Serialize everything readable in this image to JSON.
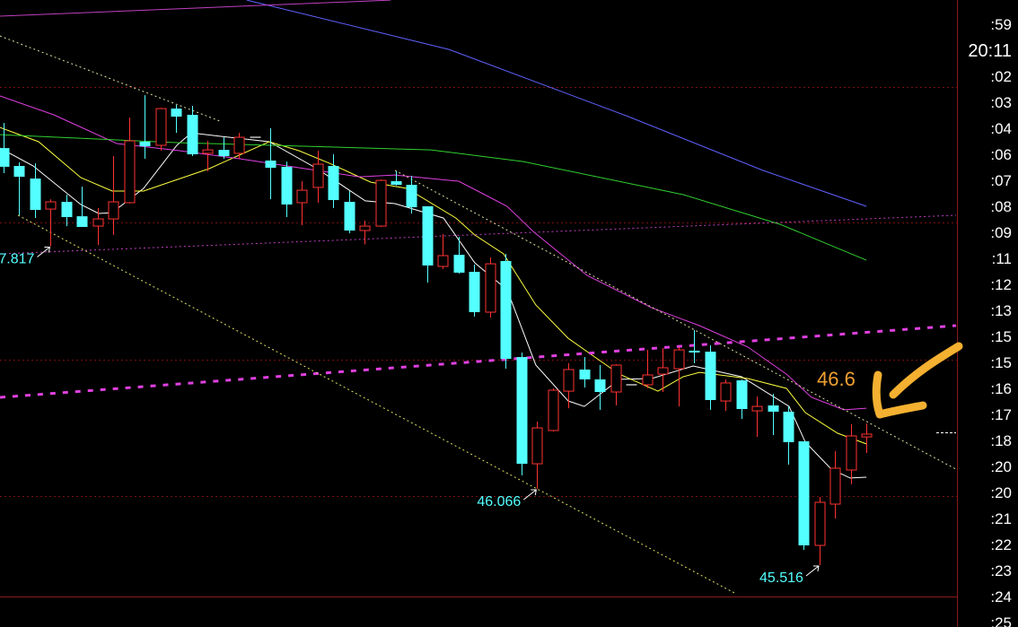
{
  "chart_data": {
    "type": "candlestick",
    "colors": {
      "up": "#ff3232",
      "down": "#54ffff",
      "flat": "#c0c0c0",
      "background": "#000000",
      "axis": "#8b1a1a",
      "grid": "#7a1010"
    },
    "y_axis_labels": [
      ":59",
      "20:11",
      ":02",
      ":03",
      ":04",
      ":06",
      ":07",
      ":08",
      ":09",
      ":11",
      ":12",
      ":13",
      ":15",
      ":15",
      ":16",
      ":17",
      ":18",
      ":20",
      ":20",
      ":21",
      ":22",
      ":23",
      ":24",
      ":25"
    ],
    "highlighted_axis_label": "20:11",
    "grid_price_levels": [
      48.965,
      47.988,
      46.998,
      46.014
    ],
    "candles": [
      {
        "o": 48.525,
        "h": 48.707,
        "l": 48.344,
        "c": 48.39
      },
      {
        "o": 48.396,
        "h": 48.422,
        "l": 48.04,
        "c": 48.318
      },
      {
        "o": 48.305,
        "h": 48.415,
        "l": 48.021,
        "c": 48.079
      },
      {
        "o": 48.085,
        "h": 48.156,
        "l": 47.817,
        "c": 48.137
      },
      {
        "o": 48.137,
        "h": 48.189,
        "l": 47.962,
        "c": 48.027
      },
      {
        "o": 48.033,
        "h": 48.247,
        "l": 47.956,
        "c": 47.956
      },
      {
        "o": 47.962,
        "h": 48.092,
        "l": 47.825,
        "c": 48.014
      },
      {
        "o": 48.014,
        "h": 48.467,
        "l": 47.898,
        "c": 48.137
      },
      {
        "o": 48.131,
        "h": 48.745,
        "l": 48.125,
        "c": 48.577
      },
      {
        "o": 48.571,
        "h": 48.907,
        "l": 48.448,
        "c": 48.538
      },
      {
        "o": 48.545,
        "h": 48.815,
        "l": 48.506,
        "c": 48.81
      },
      {
        "o": 48.81,
        "h": 48.836,
        "l": 48.635,
        "c": 48.752
      },
      {
        "o": 48.765,
        "h": 48.83,
        "l": 48.467,
        "c": 48.48
      },
      {
        "o": 48.487,
        "h": 48.577,
        "l": 48.357,
        "c": 48.512
      },
      {
        "o": 48.512,
        "h": 48.603,
        "l": 48.448,
        "c": 48.467
      },
      {
        "o": 48.487,
        "h": 48.635,
        "l": 48.448,
        "c": 48.603
      },
      {
        "o": 48.603,
        "h": 48.603,
        "l": 48.603,
        "c": 48.603
      },
      {
        "o": 48.435,
        "h": 48.668,
        "l": 48.156,
        "c": 48.383
      },
      {
        "o": 48.39,
        "h": 48.428,
        "l": 48.027,
        "c": 48.118
      },
      {
        "o": 48.131,
        "h": 48.286,
        "l": 47.969,
        "c": 48.221
      },
      {
        "o": 48.241,
        "h": 48.506,
        "l": 48.131,
        "c": 48.409
      },
      {
        "o": 48.396,
        "h": 48.48,
        "l": 48.092,
        "c": 48.15
      },
      {
        "o": 48.137,
        "h": 48.215,
        "l": 47.911,
        "c": 47.93
      },
      {
        "o": 47.93,
        "h": 48.001,
        "l": 47.83,
        "c": 47.962
      },
      {
        "o": 47.962,
        "h": 48.299,
        "l": 47.956,
        "c": 48.292
      },
      {
        "o": 48.286,
        "h": 48.357,
        "l": 48.255,
        "c": 48.26
      },
      {
        "o": 48.26,
        "h": 48.325,
        "l": 48.053,
        "c": 48.098
      },
      {
        "o": 48.105,
        "h": 48.105,
        "l": 47.555,
        "c": 47.678
      },
      {
        "o": 47.671,
        "h": 47.904,
        "l": 47.652,
        "c": 47.749
      },
      {
        "o": 47.755,
        "h": 47.885,
        "l": 47.619,
        "c": 47.626
      },
      {
        "o": 47.632,
        "h": 47.684,
        "l": 47.309,
        "c": 47.341
      },
      {
        "o": 47.341,
        "h": 47.736,
        "l": 47.302,
        "c": 47.69
      },
      {
        "o": 47.71,
        "h": 47.762,
        "l": 46.933,
        "c": 47.004
      },
      {
        "o": 47.017,
        "h": 47.05,
        "l": 46.163,
        "c": 46.247
      },
      {
        "o": 46.247,
        "h": 46.551,
        "l": 46.066,
        "c": 46.506
      },
      {
        "o": 46.487,
        "h": 46.791,
        "l": 46.48,
        "c": 46.778
      },
      {
        "o": 46.771,
        "h": 46.972,
        "l": 46.648,
        "c": 46.927
      },
      {
        "o": 46.927,
        "h": 47.017,
        "l": 46.797,
        "c": 46.856
      },
      {
        "o": 46.856,
        "h": 46.959,
        "l": 46.636,
        "c": 46.765
      },
      {
        "o": 46.765,
        "h": 46.965,
        "l": 46.668,
        "c": 46.959
      },
      {
        "o": 46.817,
        "h": 46.817,
        "l": 46.817,
        "c": 46.817
      },
      {
        "o": 46.817,
        "h": 47.069,
        "l": 46.791,
        "c": 46.888
      },
      {
        "o": 46.894,
        "h": 47.082,
        "l": 46.765,
        "c": 46.94
      },
      {
        "o": 46.933,
        "h": 47.089,
        "l": 46.661,
        "c": 47.069
      },
      {
        "o": 47.063,
        "h": 47.212,
        "l": 46.972,
        "c": 47.05
      },
      {
        "o": 47.056,
        "h": 47.102,
        "l": 46.636,
        "c": 46.707
      },
      {
        "o": 46.7,
        "h": 46.856,
        "l": 46.629,
        "c": 46.83
      },
      {
        "o": 46.849,
        "h": 46.855,
        "l": 46.571,
        "c": 46.642
      },
      {
        "o": 46.629,
        "h": 46.733,
        "l": 46.441,
        "c": 46.661
      },
      {
        "o": 46.668,
        "h": 46.752,
        "l": 46.454,
        "c": 46.623
      },
      {
        "o": 46.623,
        "h": 46.661,
        "l": 46.241,
        "c": 46.403
      },
      {
        "o": 46.409,
        "h": 46.409,
        "l": 45.626,
        "c": 45.658
      },
      {
        "o": 45.658,
        "h": 46.008,
        "l": 45.516,
        "c": 45.969
      },
      {
        "o": 45.956,
        "h": 46.338,
        "l": 45.852,
        "c": 46.215
      },
      {
        "o": 46.202,
        "h": 46.532,
        "l": 46.098,
        "c": 46.448
      },
      {
        "o": 46.441,
        "h": 46.538,
        "l": 46.325,
        "c": 46.461
      }
    ],
    "lines": [
      {
        "color": "#ffffff",
        "style": "solid",
        "points": [
          [
            -0.23,
            48.525
          ],
          [
            1.89,
            48.396
          ],
          [
            4.92,
            48.118
          ],
          [
            6.06,
            48.053
          ],
          [
            6.92,
            48.059
          ],
          [
            8.92,
            48.234
          ],
          [
            11.04,
            48.545
          ],
          [
            11.96,
            48.635
          ],
          [
            13.9,
            48.609
          ],
          [
            16.93,
            48.571
          ],
          [
            19.97,
            48.377
          ],
          [
            23.05,
            48.144
          ],
          [
            24.94,
            48.124
          ],
          [
            28.03,
            48.02
          ],
          [
            30.03,
            47.697
          ],
          [
            32.09,
            47.503
          ],
          [
            33.92,
            46.959
          ],
          [
            35.98,
            46.7
          ],
          [
            37.01,
            46.661
          ],
          [
            39.24,
            46.856
          ],
          [
            41.3,
            46.862
          ],
          [
            43.94,
            46.953
          ],
          [
            47.03,
            46.875
          ],
          [
            50.06,
            46.661
          ],
          [
            51.09,
            46.403
          ],
          [
            52.75,
            46.208
          ],
          [
            53.95,
            46.144
          ],
          [
            54.98,
            46.15
          ]
        ]
      },
      {
        "color": "#ffff40",
        "style": "solid",
        "points": [
          [
            -0.23,
            48.674
          ],
          [
            2.23,
            48.571
          ],
          [
            4.92,
            48.312
          ],
          [
            6.92,
            48.215
          ],
          [
            8.92,
            48.215
          ],
          [
            13.1,
            48.377
          ],
          [
            16.93,
            48.571
          ],
          [
            18.82,
            48.506
          ],
          [
            20.77,
            48.415
          ],
          [
            23.4,
            48.279
          ],
          [
            25.69,
            48.234
          ],
          [
            28.83,
            48.02
          ],
          [
            30.03,
            47.898
          ],
          [
            31.86,
            47.762
          ],
          [
            33.92,
            47.393
          ],
          [
            35.98,
            47.153
          ],
          [
            37.59,
            47.024
          ],
          [
            39.24,
            46.894
          ],
          [
            41.7,
            46.771
          ],
          [
            43.31,
            46.875
          ],
          [
            44.34,
            46.907
          ],
          [
            47.43,
            46.862
          ],
          [
            49.89,
            46.791
          ],
          [
            51.09,
            46.616
          ],
          [
            53.15,
            46.467
          ],
          [
            54.98,
            46.39
          ]
        ]
      },
      {
        "color": "#e040e0",
        "style": "solid",
        "points": [
          [
            -0.23,
            48.901
          ],
          [
            3.2,
            48.765
          ],
          [
            7.21,
            48.558
          ],
          [
            11.21,
            48.506
          ],
          [
            15.05,
            48.448
          ],
          [
            18.82,
            48.383
          ],
          [
            22.65,
            48.318
          ],
          [
            24.94,
            48.331
          ],
          [
            29.0,
            48.286
          ],
          [
            30.66,
            48.189
          ],
          [
            32.09,
            48.105
          ],
          [
            33.75,
            47.923
          ],
          [
            37.19,
            47.606
          ],
          [
            41.3,
            47.373
          ],
          [
            44.34,
            47.244
          ],
          [
            47.43,
            47.089
          ],
          [
            49.89,
            46.894
          ],
          [
            51.49,
            46.726
          ],
          [
            53.55,
            46.636
          ],
          [
            54.98,
            46.648
          ]
        ]
      },
      {
        "color": "#30d030",
        "style": "solid",
        "points": [
          [
            -0.23,
            48.622
          ],
          [
            11.21,
            48.564
          ],
          [
            27.23,
            48.512
          ],
          [
            33.12,
            48.428
          ],
          [
            43.31,
            48.189
          ],
          [
            49.49,
            47.975
          ],
          [
            54.98,
            47.716
          ]
        ]
      },
      {
        "color": "#6060ff",
        "style": "solid",
        "points": [
          [
            15.5,
            49.593
          ],
          [
            28.38,
            49.237
          ],
          [
            39.82,
            48.752
          ],
          [
            48.4,
            48.364
          ],
          [
            54.98,
            48.105
          ]
        ]
      },
      {
        "color": "#c040c0",
        "style": "solid",
        "points": [
          [
            -0.23,
            49.477
          ],
          [
            24.66,
            49.593
          ]
        ]
      },
      {
        "color": "#c040c0",
        "style": "dotted",
        "points": [
          [
            -0.23,
            47.762
          ],
          [
            60.7,
            48.04
          ]
        ]
      },
      {
        "color": "#e040e0",
        "style": "dashed-thick",
        "points": [
          [
            -0.23,
            46.726
          ],
          [
            60.7,
            47.244
          ]
        ]
      },
      {
        "color": "#e0e0a0",
        "style": "dotted",
        "points": [
          [
            -0.23,
            49.334
          ],
          [
            13.79,
            48.72
          ]
        ]
      },
      {
        "color": "#e0e0a0",
        "style": "dotted",
        "points": [
          [
            24.94,
            48.364
          ],
          [
            60.7,
            46.208
          ]
        ]
      },
      {
        "color": "#e0e060",
        "style": "dotted",
        "points": [
          [
            0.92,
            48.04
          ],
          [
            46.68,
            45.309
          ]
        ]
      }
    ],
    "extreme_labels": [
      {
        "text": "7.817",
        "candle": 3,
        "price": 47.817
      },
      {
        "text": "46.066",
        "candle": 34,
        "price": 46.066
      },
      {
        "text": "45.516",
        "candle": 52,
        "price": 45.516
      }
    ],
    "annotation": {
      "text": "46.6",
      "color": "#f0a030"
    }
  }
}
